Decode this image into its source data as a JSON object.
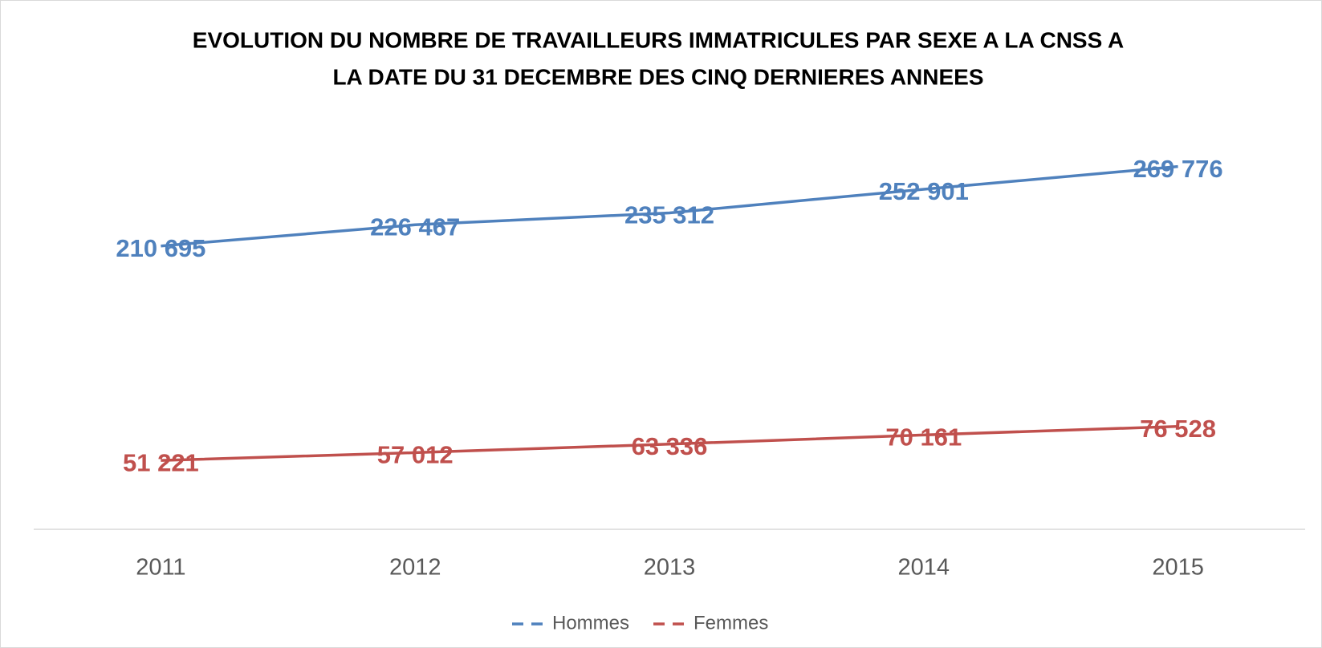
{
  "chart_data": {
    "type": "line",
    "title": [
      "EVOLUTION DU NOMBRE DE TRAVAILLEURS IMMATRICULES PAR SEXE A LA CNSS A",
      "LA DATE DU 31 DECEMBRE DES CINQ DERNIERES ANNEES"
    ],
    "categories": [
      "2011",
      "2012",
      "2013",
      "2014",
      "2015"
    ],
    "series": [
      {
        "name": "Hommes",
        "color": "#4f81bd",
        "values": [
          210695,
          226467,
          235312,
          252901,
          269776
        ],
        "value_labels": [
          "210 695",
          "226 467",
          "235 312",
          "252 901",
          "269 776"
        ]
      },
      {
        "name": "Femmes",
        "color": "#c0504d",
        "values": [
          51221,
          57012,
          63336,
          70161,
          76528
        ],
        "value_labels": [
          "51 221",
          "57 012",
          "63 336",
          "70 161",
          "76 528"
        ]
      }
    ],
    "ylim": [
      0,
      300000
    ],
    "legend": "bottom"
  }
}
